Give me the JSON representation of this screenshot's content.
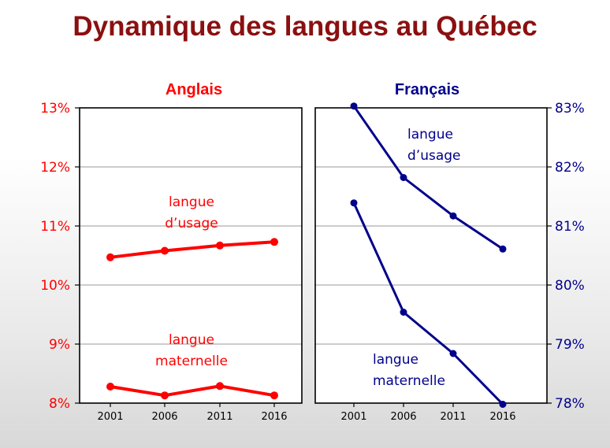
{
  "title": "Dynamique des langues au Québec",
  "colors": {
    "title": "#8b1010",
    "anglais": "#ff0000",
    "francais": "#00008b"
  },
  "chart_data": [
    {
      "type": "line",
      "title": "Anglais",
      "x": [
        "2001",
        "2006",
        "2011",
        "2016"
      ],
      "ylim": [
        8,
        13
      ],
      "yticks": [
        "8%",
        "9%",
        "10%",
        "11%",
        "12%",
        "13%"
      ],
      "grid": true,
      "series": [
        {
          "name": "langue d’usage",
          "values": [
            10.47,
            10.58,
            10.67,
            10.73
          ]
        },
        {
          "name": "langue maternelle",
          "values": [
            8.28,
            8.13,
            8.29,
            8.13
          ]
        }
      ]
    },
    {
      "type": "line",
      "title": "Français",
      "x": [
        "2001",
        "2006",
        "2011",
        "2016"
      ],
      "ylim": [
        78,
        83
      ],
      "yticks": [
        "78%",
        "79%",
        "80%",
        "81%",
        "82%",
        "83%"
      ],
      "grid": true,
      "series": [
        {
          "name": "langue d’usage",
          "values": [
            83.03,
            81.82,
            81.17,
            80.61
          ]
        },
        {
          "name": "langue maternelle",
          "values": [
            81.39,
            79.54,
            78.84,
            77.98
          ]
        }
      ]
    }
  ],
  "annotations": {
    "anglais_usage": [
      "langue",
      "d’usage"
    ],
    "anglais_maternelle": [
      "langue",
      "maternelle"
    ],
    "francais_usage": [
      "langue",
      "d’usage"
    ],
    "francais_maternelle": [
      "langue",
      "maternelle"
    ]
  }
}
